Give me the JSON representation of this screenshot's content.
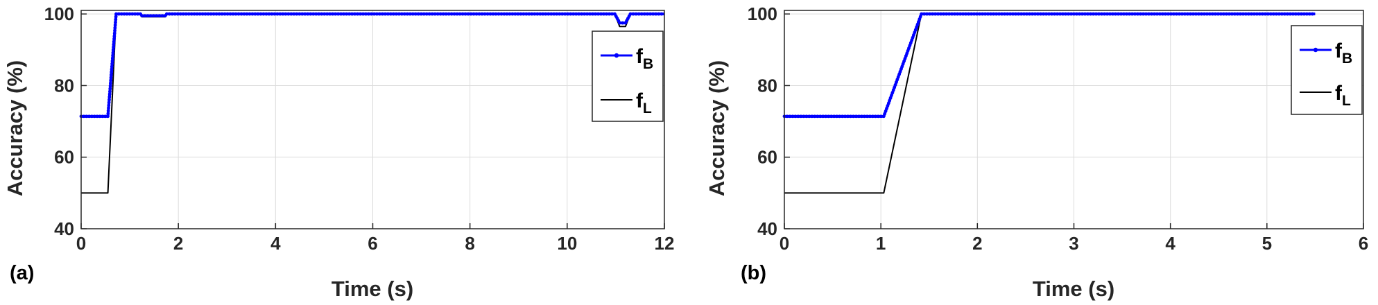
{
  "chart_data": [
    {
      "type": "line",
      "panel_label": "(a)",
      "xlabel": "Time (s)",
      "ylabel": "Accuracy (%)",
      "xlim": [
        0,
        12
      ],
      "ylim": [
        40,
        101
      ],
      "xticks": [
        0,
        2,
        4,
        6,
        8,
        10,
        12
      ],
      "yticks": [
        40,
        60,
        80,
        100
      ],
      "grid": true,
      "legend_position": "right",
      "series": [
        {
          "name": "f",
          "subscript": "B",
          "color": "#0000ff",
          "marker": "dot",
          "x": [
            0,
            0.55,
            0.72,
            1.22,
            1.25,
            1.73,
            1.76,
            10.98,
            11.08,
            11.2,
            11.3,
            12
          ],
          "y": [
            71.4,
            71.4,
            100,
            100,
            99.5,
            99.5,
            100,
            100,
            97.5,
            97.5,
            100,
            100
          ]
        },
        {
          "name": "f",
          "subscript": "L",
          "color": "#000000",
          "marker": "none",
          "x": [
            0,
            0.55,
            0.72,
            1.22,
            1.25,
            1.73,
            1.76,
            10.98,
            11.08,
            11.2,
            11.3,
            12
          ],
          "y": [
            50,
            50,
            100,
            100,
            99.2,
            99.2,
            100,
            100,
            96.5,
            96.5,
            100,
            100
          ]
        }
      ]
    },
    {
      "type": "line",
      "panel_label": "(b)",
      "xlabel": "Time (s)",
      "ylabel": "Accuracy (%)",
      "xlim": [
        0,
        6
      ],
      "ylim": [
        40,
        101
      ],
      "xticks": [
        0,
        1,
        2,
        3,
        4,
        5,
        6
      ],
      "yticks": [
        40,
        60,
        80,
        100
      ],
      "grid": true,
      "legend_position": "right",
      "series": [
        {
          "name": "f",
          "subscript": "B",
          "color": "#0000ff",
          "marker": "dot",
          "x": [
            0,
            1.03,
            1.42,
            5.5
          ],
          "y": [
            71.4,
            71.4,
            100,
            100
          ]
        },
        {
          "name": "f",
          "subscript": "L",
          "color": "#000000",
          "marker": "none",
          "x": [
            0,
            1.03,
            1.42,
            5.5
          ],
          "y": [
            50,
            50,
            100,
            100
          ]
        }
      ]
    }
  ]
}
